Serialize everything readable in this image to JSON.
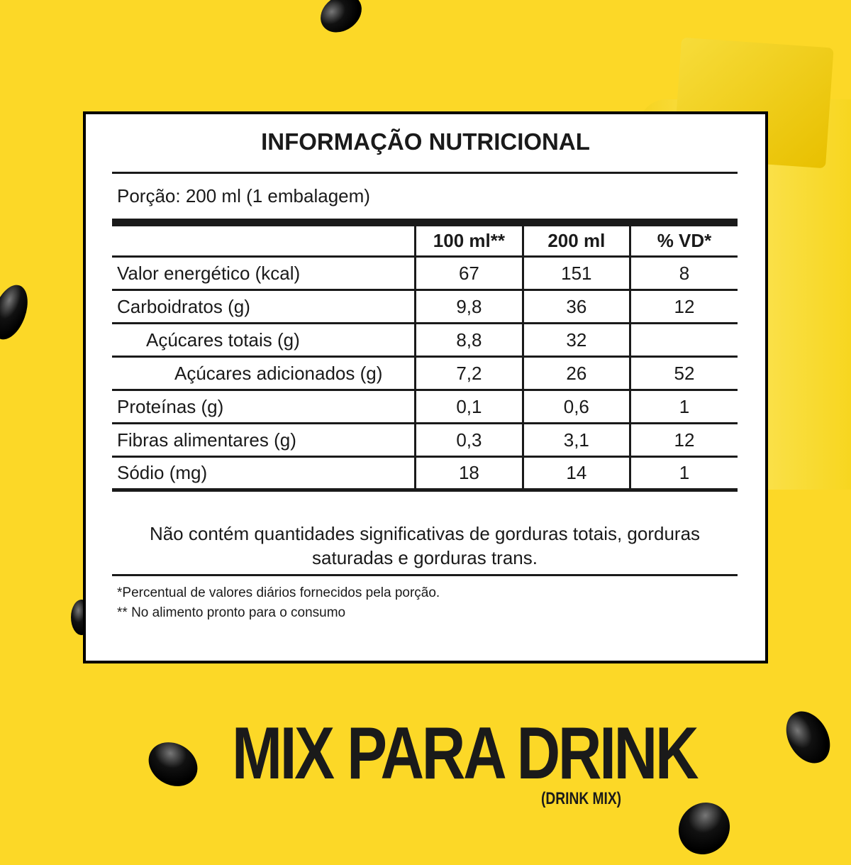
{
  "title": "INFORMAÇÃO NUTRICIONAL",
  "portion": "Porção: 200 ml (1 embalagem)",
  "columns": [
    "",
    "100 ml**",
    "200 ml",
    "% VD*"
  ],
  "rows": [
    {
      "label": "Valor energético (kcal)",
      "v100": "67",
      "v200": "151",
      "vd": "8"
    },
    {
      "label": "Carboidratos (g)",
      "v100": "9,8",
      "v200": "36",
      "vd": "12"
    },
    {
      "label": "Açúcares totais (g)",
      "v100": "8,8",
      "v200": "32",
      "vd": ""
    },
    {
      "label": "Açúcares adicionados (g)",
      "v100": "7,2",
      "v200": "26",
      "vd": "52"
    },
    {
      "label": "Proteínas (g)",
      "v100": "0,1",
      "v200": "0,6",
      "vd": "1"
    },
    {
      "label": "Fibras alimentares (g)",
      "v100": "0,3",
      "v200": "3,1",
      "vd": "12"
    },
    {
      "label": "Sódio (mg)",
      "v100": "18",
      "v200": "14",
      "vd": "1"
    }
  ],
  "note": "Não contém quantidades significativas de gorduras totais, gorduras saturadas e gorduras trans.",
  "footnotes": [
    "*Percentual de valores diários fornecidos pela porção.",
    "** No alimento pronto para o consumo"
  ],
  "brand": {
    "name": "MIX PARA DRINK",
    "subtitle": "(DRINK MIX)"
  },
  "colors": {
    "background": "#FCD827",
    "text": "#1a1a1a"
  }
}
